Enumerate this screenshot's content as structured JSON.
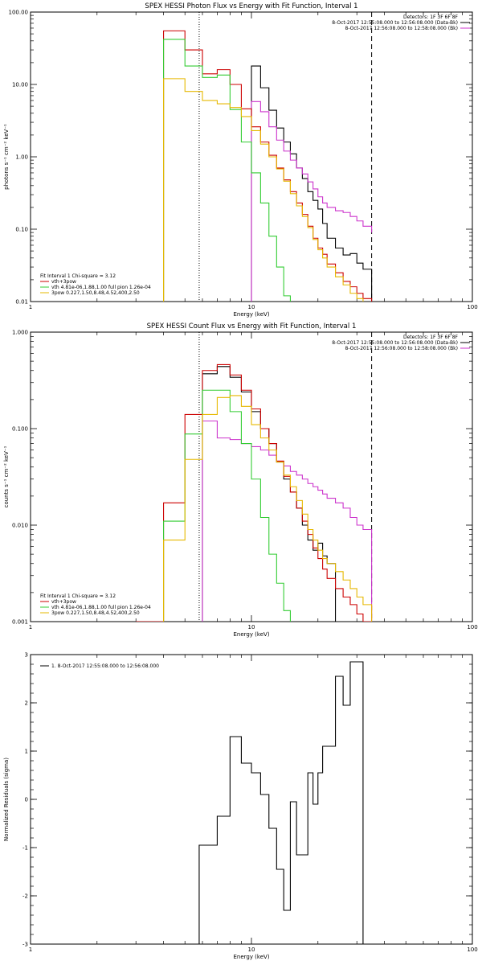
{
  "chart_data": [
    {
      "type": "line",
      "title": "SPEX HESSI Photon Flux vs Energy with Fit Function, Interval 1",
      "xlabel": "Energy (keV)",
      "ylabel": "photons s⁻¹ cm⁻² keV⁻¹",
      "xscale": "log",
      "yscale": "log",
      "xlim": [
        1,
        100
      ],
      "ylim": [
        0.01,
        100
      ],
      "xticks": [
        1,
        10,
        100
      ],
      "xtick_labels": [
        "1",
        "10",
        "100"
      ],
      "yticks": [
        0.01,
        0.1,
        1,
        10,
        100
      ],
      "ytick_labels": [
        "0.01",
        "0.10",
        "1.00",
        "10.00",
        "100.00"
      ],
      "vlines": [
        {
          "x": 5.8,
          "style": "dotted"
        },
        {
          "x": 35,
          "style": "dashed"
        }
      ],
      "edges": [
        4,
        5,
        6,
        7,
        8,
        9,
        10,
        11,
        12,
        13,
        14,
        15,
        16,
        17,
        18,
        19,
        20,
        21,
        22,
        24,
        26,
        28,
        30,
        32,
        35
      ],
      "legend_top": [
        "Detectors: 1F 3F 6F 8F",
        "8-Oct-2017 12:55:08.000 to 12:56:08.000 (Data-Bk)",
        "8-Oct-2017 12:56:08.000 to 12:58:08.000 (Bk)"
      ],
      "legend_top_colors": [
        "",
        "#000000",
        "#cc33cc"
      ],
      "legend_bottom": [
        "Fit Interval 1   Chi-square = 3.12",
        "vth+3pow",
        "vth 4.81e-06,1.88,1.00  full pion 1.26e-04",
        "3pow 0.227,1.50,8.48,4.52,400,2.50"
      ],
      "legend_bottom_colors": [
        "",
        "#cc0000",
        "#33cc33",
        "#e6b800"
      ],
      "series": [
        {
          "name": "8-Oct-2017 12:55:08.000 to 12:56:08.000 (Data-Bk)",
          "color": "#000000",
          "start": 6,
          "values": [
            18,
            9,
            4.4,
            2.5,
            1.6,
            1.1,
            0.7,
            0.5,
            0.33,
            0.25,
            0.19,
            0.12,
            0.075,
            0.055,
            0.044,
            0.046,
            0.034,
            0.028
          ]
        },
        {
          "name": "8-Oct-2017 12:56:08.000 to 12:58:08.000 (Bk)",
          "color": "#cc33cc",
          "start": 6,
          "values": [
            5.8,
            4.2,
            2.6,
            1.7,
            1.2,
            0.9,
            0.7,
            0.58,
            0.45,
            0.36,
            0.28,
            0.23,
            0.2,
            0.18,
            0.17,
            0.15,
            0.13,
            0.11,
            0.09
          ]
        },
        {
          "name": "vth+3pow",
          "color": "#cc0000",
          "start": 0,
          "values": [
            55,
            30,
            14,
            16,
            10,
            4.6,
            2.6,
            1.6,
            1.05,
            0.7,
            0.48,
            0.33,
            0.23,
            0.16,
            0.11,
            0.075,
            0.055,
            0.045,
            0.033,
            0.025,
            0.019,
            0.016,
            0.013,
            0.011
          ]
        },
        {
          "name": "vth 4.81e-06,1.88,1.00  full pion 1.26e-04",
          "color": "#33cc33",
          "start": 0,
          "values": [
            42,
            18,
            12.5,
            13.5,
            4.5,
            1.6,
            0.6,
            0.23,
            0.08,
            0.03,
            0.012
          ]
        },
        {
          "name": "3pow 0.227,1.50,8.48,4.52,400,2.50",
          "color": "#e6b800",
          "start": 0,
          "values": [
            12,
            8,
            6,
            5.4,
            4.8,
            3.6,
            2.3,
            1.5,
            1.0,
            0.68,
            0.46,
            0.31,
            0.21,
            0.15,
            0.105,
            0.072,
            0.052,
            0.04,
            0.03,
            0.022,
            0.017,
            0.013,
            0.011,
            0.0095
          ]
        }
      ]
    },
    {
      "type": "line",
      "title": "SPEX HESSI Count Flux vs Energy with Fit Function, Interval 1",
      "xlabel": "Energy (keV)",
      "ylabel": "counts s⁻¹ cm⁻² keV⁻¹",
      "xscale": "log",
      "yscale": "log",
      "xlim": [
        1,
        100
      ],
      "ylim": [
        0.001,
        1
      ],
      "xticks": [
        1,
        10,
        100
      ],
      "xtick_labels": [
        "1",
        "10",
        "100"
      ],
      "yticks": [
        0.001,
        0.01,
        0.1,
        1
      ],
      "ytick_labels": [
        "0.001",
        "0.010",
        "0.100",
        "1.000"
      ],
      "vlines": [
        {
          "x": 5.8,
          "style": "dotted"
        },
        {
          "x": 35,
          "style": "dashed"
        }
      ],
      "edges": [
        3,
        4,
        5,
        6,
        7,
        8,
        9,
        10,
        11,
        12,
        13,
        14,
        15,
        16,
        17,
        18,
        19,
        20,
        21,
        22,
        24,
        26,
        28,
        30,
        32,
        35
      ],
      "legend_top": [
        "Detectors: 1F 3F 6F 8F",
        "8-Oct-2017 12:55:08.000 to 12:56:08.000 (Data-Bk)",
        "8-Oct-2017 12:56:08.000 to 12:58:08.000 (Bk)"
      ],
      "legend_top_colors": [
        "",
        "#000000",
        "#cc33cc"
      ],
      "legend_bottom": [
        "Fit Interval 1   Chi-square = 3.12",
        "vth+3pow",
        "vth 4.81e-06,1.88,1.00  full pion 1.26e-04",
        "3pow 0.227,1.50,8.48,4.52,400,2.50"
      ],
      "legend_bottom_colors": [
        "",
        "#cc0000",
        "#33cc33",
        "#e6b800"
      ],
      "series": [
        {
          "name": "8-Oct-2017 12:55:08.000 to 12:56:08.000 (Data-Bk)",
          "color": "#000000",
          "start": 3,
          "values": [
            0.37,
            0.44,
            0.34,
            0.24,
            0.15,
            0.1,
            0.07,
            0.045,
            0.03,
            0.022,
            0.015,
            0.01,
            0.007,
            0.0055,
            0.0065,
            0.0048,
            0.004
          ]
        },
        {
          "name": "8-Oct-2017 12:56:08.000 to 12:58:08.000 (Bk)",
          "color": "#cc33cc",
          "start": 3,
          "values": [
            0.12,
            0.08,
            0.077,
            0.07,
            0.065,
            0.06,
            0.053,
            0.046,
            0.041,
            0.036,
            0.033,
            0.03,
            0.027,
            0.025,
            0.023,
            0.021,
            0.019,
            0.017,
            0.015,
            0.012,
            0.01,
            0.009
          ]
        },
        {
          "name": "vth+3pow",
          "color": "#cc0000",
          "start": 0,
          "values": [
            0.001,
            0.017,
            0.14,
            0.4,
            0.46,
            0.36,
            0.25,
            0.16,
            0.1,
            0.07,
            0.046,
            0.032,
            0.022,
            0.015,
            0.011,
            0.008,
            0.0058,
            0.0045,
            0.0035,
            0.0028,
            0.0022,
            0.0018,
            0.0015,
            0.0012,
            0.001
          ]
        },
        {
          "name": "vth 4.81e-06,1.88,1.00  full pion 1.26e-04",
          "color": "#33cc33",
          "start": 1,
          "values": [
            0.011,
            0.088,
            0.25,
            0.25,
            0.15,
            0.07,
            0.03,
            0.012,
            0.005,
            0.0025,
            0.0013,
            0.0008
          ]
        },
        {
          "name": "3pow 0.227,1.50,8.48,4.52,400,2.50",
          "color": "#e6b800",
          "start": 1,
          "values": [
            0.007,
            0.048,
            0.14,
            0.21,
            0.22,
            0.17,
            0.11,
            0.08,
            0.06,
            0.045,
            0.033,
            0.025,
            0.018,
            0.013,
            0.009,
            0.007,
            0.0055,
            0.0045,
            0.004,
            0.0033,
            0.0027,
            0.0022,
            0.0018,
            0.0015
          ]
        }
      ]
    },
    {
      "type": "line",
      "title": "",
      "xlabel": "Energy (keV)",
      "ylabel": "Normalized Residuals (sigma)",
      "xscale": "log",
      "yscale": "linear",
      "xlim": [
        1,
        100
      ],
      "ylim": [
        -3,
        3
      ],
      "xticks": [
        1,
        10,
        100
      ],
      "xtick_labels": [
        "1",
        "10",
        "100"
      ],
      "yticks": [
        -3,
        -2,
        -1,
        0,
        1,
        2,
        3
      ],
      "ytick_labels": [
        "-3",
        "-2",
        "-1",
        "0",
        "1",
        "2",
        "3"
      ],
      "legend": "1.  8-Oct-2017 12:55:08.000 to 12:56:08.000",
      "edges": [
        5.8,
        7,
        8,
        9,
        10,
        11,
        12,
        13,
        14,
        15,
        16,
        17,
        18,
        19,
        20,
        21,
        22,
        24,
        26,
        28,
        30,
        32,
        35
      ],
      "series": [
        {
          "name": "",
          "color": "#000000",
          "values": [
            -0.95,
            -0.35,
            1.3,
            0.75,
            0.55,
            0.1,
            -0.6,
            -1.45,
            -2.3,
            -0.05,
            -1.15,
            -1.15,
            0.55,
            -0.1,
            0.55,
            1.1,
            1.1,
            2.55,
            1.95,
            2.85,
            2.85
          ]
        }
      ]
    }
  ]
}
